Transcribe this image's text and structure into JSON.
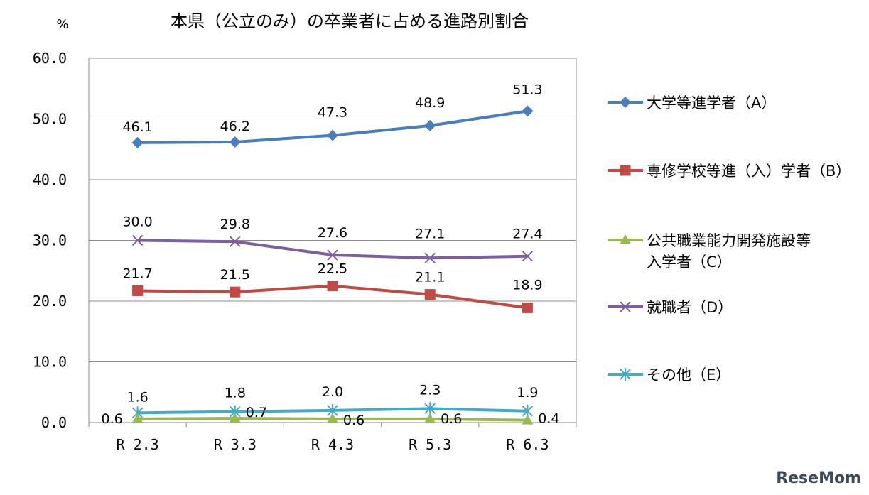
{
  "chart_data": {
    "type": "line",
    "title": "本県（公立のみ）の卒業者に占める進路別割合",
    "ylabel": "%",
    "categories": [
      "R 2.3",
      "R 3.3",
      "R 4.3",
      "R 5.3",
      "R 6.3"
    ],
    "yticks": [
      "0.0",
      "10.0",
      "20.0",
      "30.0",
      "40.0",
      "50.0",
      "60.0"
    ],
    "ylim": [
      0,
      60
    ],
    "grid": true,
    "legend_position": "right",
    "series": [
      {
        "name": "大学等進学者（A）",
        "values": [
          46.1,
          46.2,
          47.3,
          48.9,
          51.3
        ],
        "labels": [
          "46.1",
          "46.2",
          "47.3",
          "48.9",
          "51.3"
        ],
        "color": "#4a7ebb",
        "marker": "diamond"
      },
      {
        "name": "専修学校等進（入）学者（B）",
        "values": [
          21.7,
          21.5,
          22.5,
          21.1,
          18.9
        ],
        "labels": [
          "21.7",
          "21.5",
          "22.5",
          "21.1",
          "18.9"
        ],
        "color": "#be4b48",
        "marker": "square"
      },
      {
        "name": "公共職業能力開発施設等\n入学者（C）",
        "values": [
          0.6,
          0.7,
          0.6,
          0.6,
          0.4
        ],
        "labels": [
          "0.6",
          "0.7",
          "0.6",
          "0.6",
          "0.4"
        ],
        "color": "#98b954",
        "marker": "triangle"
      },
      {
        "name": "就職者（D）",
        "values": [
          30.0,
          29.8,
          27.6,
          27.1,
          27.4
        ],
        "labels": [
          "30.0",
          "29.8",
          "27.6",
          "27.1",
          "27.4"
        ],
        "color": "#7d5fa0",
        "marker": "x"
      },
      {
        "name": "その他（E）",
        "values": [
          1.6,
          1.8,
          2.0,
          2.3,
          1.9
        ],
        "labels": [
          "1.6",
          "1.8",
          "2.0",
          "2.3",
          "1.9"
        ],
        "color": "#46aac5",
        "marker": "star"
      }
    ]
  },
  "watermark": "ReseMom"
}
